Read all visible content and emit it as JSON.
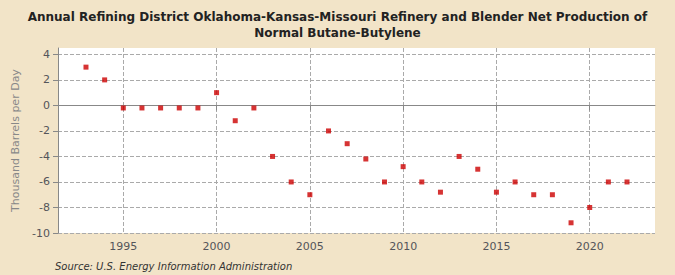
{
  "chart_data": {
    "type": "scatter",
    "title": "Annual Refining District Oklahoma-Kansas-Missouri Refinery and Blender Net Production of\nNormal Butane-Butylene",
    "ylabel": "Thousand Barrels per Day",
    "source": "Source: U.S. Energy Information Administration",
    "x": [
      1993,
      1994,
      1995,
      1996,
      1997,
      1998,
      1999,
      2000,
      2001,
      2002,
      2003,
      2004,
      2005,
      2006,
      2007,
      2008,
      2009,
      2010,
      2011,
      2012,
      2013,
      2014,
      2015,
      2016,
      2017,
      2018,
      2019,
      2020,
      2021,
      2022
    ],
    "values": [
      3.0,
      2.0,
      -0.2,
      -0.2,
      -0.2,
      -0.2,
      -0.2,
      1.0,
      -1.2,
      -0.2,
      -4.0,
      -6.0,
      -7.0,
      -2.0,
      -3.0,
      -4.2,
      -6.0,
      -4.8,
      -6.0,
      -6.8,
      -4.0,
      -5.0,
      -6.8,
      -6.0,
      -7.0,
      -7.0,
      -9.2,
      -8.0,
      -6.0,
      -6.0
    ],
    "color": "#cc0000",
    "marker": "square",
    "xlim": [
      1991.5,
      2023.5
    ],
    "ylim": [
      -10,
      4.5
    ],
    "yticks": [
      -10,
      -8,
      -6,
      -4,
      -2,
      0,
      2,
      4
    ],
    "xticks": [
      1995,
      2000,
      2005,
      2010,
      2015,
      2020
    ],
    "grid": true
  }
}
